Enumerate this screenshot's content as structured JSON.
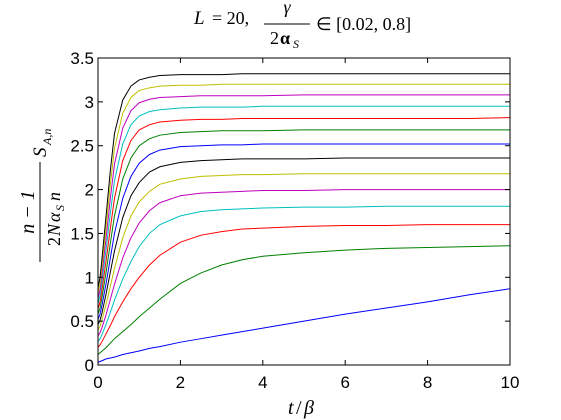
{
  "chart_data": {
    "type": "line",
    "title": {
      "l_var": "L",
      "l_eq": "= 20,",
      "frac_num": "γ",
      "frac_den_coef": "2",
      "frac_den_sym": "α",
      "frac_den_sub": "S",
      "range": "∈ [0.02, 0.8]"
    },
    "xlabel": {
      "t": "t",
      "slash": "/",
      "beta": "β"
    },
    "ylabel": {
      "num": "n − 1",
      "den_coef": "2",
      "den_N": "N",
      "den_alpha": "α",
      "den_sub": "S",
      "den_n": "n",
      "S": "S",
      "S_sub": "A,n"
    },
    "xlim": [
      0,
      10
    ],
    "ylim": [
      0,
      3.5
    ],
    "xticks": [
      "0",
      "2",
      "4",
      "6",
      "8",
      "10"
    ],
    "yticks": [
      "0",
      "0.5",
      "1",
      "1.5",
      "2",
      "2.5",
      "3",
      "3.5"
    ],
    "grid": false,
    "x": [
      0,
      0.05,
      0.1,
      0.2,
      0.3,
      0.4,
      0.6,
      0.8,
      1,
      1.25,
      1.5,
      2,
      2.5,
      3,
      3.5,
      4,
      5,
      6,
      7,
      8,
      9,
      10
    ],
    "series": [
      {
        "color": "#0000ff",
        "values": [
          0.03,
          0.04,
          0.05,
          0.07,
          0.08,
          0.09,
          0.12,
          0.14,
          0.16,
          0.19,
          0.21,
          0.26,
          0.3,
          0.34,
          0.38,
          0.42,
          0.5,
          0.58,
          0.65,
          0.72,
          0.8,
          0.87
        ]
      },
      {
        "color": "#008000",
        "values": [
          0.12,
          0.14,
          0.16,
          0.2,
          0.25,
          0.3,
          0.38,
          0.46,
          0.55,
          0.65,
          0.75,
          0.93,
          1.05,
          1.14,
          1.2,
          1.24,
          1.28,
          1.31,
          1.33,
          1.34,
          1.35,
          1.36
        ]
      },
      {
        "color": "#ff0000",
        "values": [
          0.2,
          0.23,
          0.27,
          0.36,
          0.45,
          0.55,
          0.72,
          0.87,
          1.0,
          1.14,
          1.25,
          1.4,
          1.48,
          1.52,
          1.55,
          1.56,
          1.58,
          1.59,
          1.59,
          1.6,
          1.6,
          1.6
        ]
      },
      {
        "color": "#00bfbf",
        "values": [
          0.27,
          0.3,
          0.35,
          0.47,
          0.6,
          0.74,
          0.98,
          1.18,
          1.35,
          1.5,
          1.6,
          1.7,
          1.75,
          1.77,
          1.78,
          1.79,
          1.8,
          1.8,
          1.81,
          1.81,
          1.81,
          1.81
        ]
      },
      {
        "color": "#bf00bf",
        "values": [
          0.33,
          0.37,
          0.43,
          0.58,
          0.75,
          0.92,
          1.22,
          1.45,
          1.62,
          1.76,
          1.85,
          1.93,
          1.96,
          1.97,
          1.98,
          1.99,
          1.99,
          2.0,
          2.0,
          2.0,
          2.0,
          2.0
        ]
      },
      {
        "color": "#bfbf00",
        "values": [
          0.4,
          0.44,
          0.52,
          0.7,
          0.9,
          1.1,
          1.45,
          1.7,
          1.86,
          1.98,
          2.06,
          2.12,
          2.15,
          2.16,
          2.17,
          2.17,
          2.18,
          2.18,
          2.18,
          2.18,
          2.18,
          2.18
        ]
      },
      {
        "color": "#000000",
        "values": [
          0.46,
          0.51,
          0.6,
          0.82,
          1.06,
          1.3,
          1.68,
          1.93,
          2.08,
          2.2,
          2.26,
          2.31,
          2.33,
          2.34,
          2.35,
          2.35,
          2.35,
          2.36,
          2.36,
          2.36,
          2.36,
          2.36
        ]
      },
      {
        "color": "#0000ff",
        "values": [
          0.52,
          0.58,
          0.69,
          0.94,
          1.22,
          1.5,
          1.9,
          2.15,
          2.3,
          2.4,
          2.45,
          2.49,
          2.5,
          2.51,
          2.51,
          2.52,
          2.52,
          2.52,
          2.52,
          2.52,
          2.52,
          2.52
        ]
      },
      {
        "color": "#008000",
        "values": [
          0.58,
          0.65,
          0.78,
          1.07,
          1.39,
          1.7,
          2.12,
          2.36,
          2.5,
          2.58,
          2.62,
          2.65,
          2.66,
          2.67,
          2.67,
          2.67,
          2.68,
          2.68,
          2.68,
          2.68,
          2.68,
          2.68
        ]
      },
      {
        "color": "#ff0000",
        "values": [
          0.64,
          0.72,
          0.87,
          1.2,
          1.56,
          1.9,
          2.33,
          2.56,
          2.68,
          2.74,
          2.77,
          2.79,
          2.8,
          2.8,
          2.81,
          2.81,
          2.81,
          2.81,
          2.81,
          2.81,
          2.81,
          2.82
        ]
      },
      {
        "color": "#00bfbf",
        "values": [
          0.7,
          0.79,
          0.96,
          1.33,
          1.73,
          2.1,
          2.52,
          2.74,
          2.84,
          2.89,
          2.91,
          2.93,
          2.94,
          2.94,
          2.94,
          2.95,
          2.95,
          2.95,
          2.95,
          2.95,
          2.95,
          2.95
        ]
      },
      {
        "color": "#bf00bf",
        "values": [
          0.76,
          0.86,
          1.05,
          1.46,
          1.9,
          2.29,
          2.7,
          2.9,
          2.99,
          3.03,
          3.05,
          3.06,
          3.07,
          3.07,
          3.07,
          3.07,
          3.08,
          3.08,
          3.08,
          3.08,
          3.08,
          3.08
        ]
      },
      {
        "color": "#bfbf00",
        "values": [
          0.82,
          0.93,
          1.14,
          1.59,
          2.06,
          2.47,
          2.87,
          3.05,
          3.13,
          3.16,
          3.18,
          3.19,
          3.19,
          3.2,
          3.2,
          3.2,
          3.2,
          3.2,
          3.2,
          3.2,
          3.2,
          3.2
        ]
      },
      {
        "color": "#000000",
        "values": [
          0.88,
          1.0,
          1.23,
          1.72,
          2.22,
          2.64,
          3.02,
          3.18,
          3.25,
          3.28,
          3.3,
          3.31,
          3.31,
          3.31,
          3.32,
          3.32,
          3.32,
          3.32,
          3.32,
          3.32,
          3.32,
          3.32
        ]
      }
    ]
  }
}
